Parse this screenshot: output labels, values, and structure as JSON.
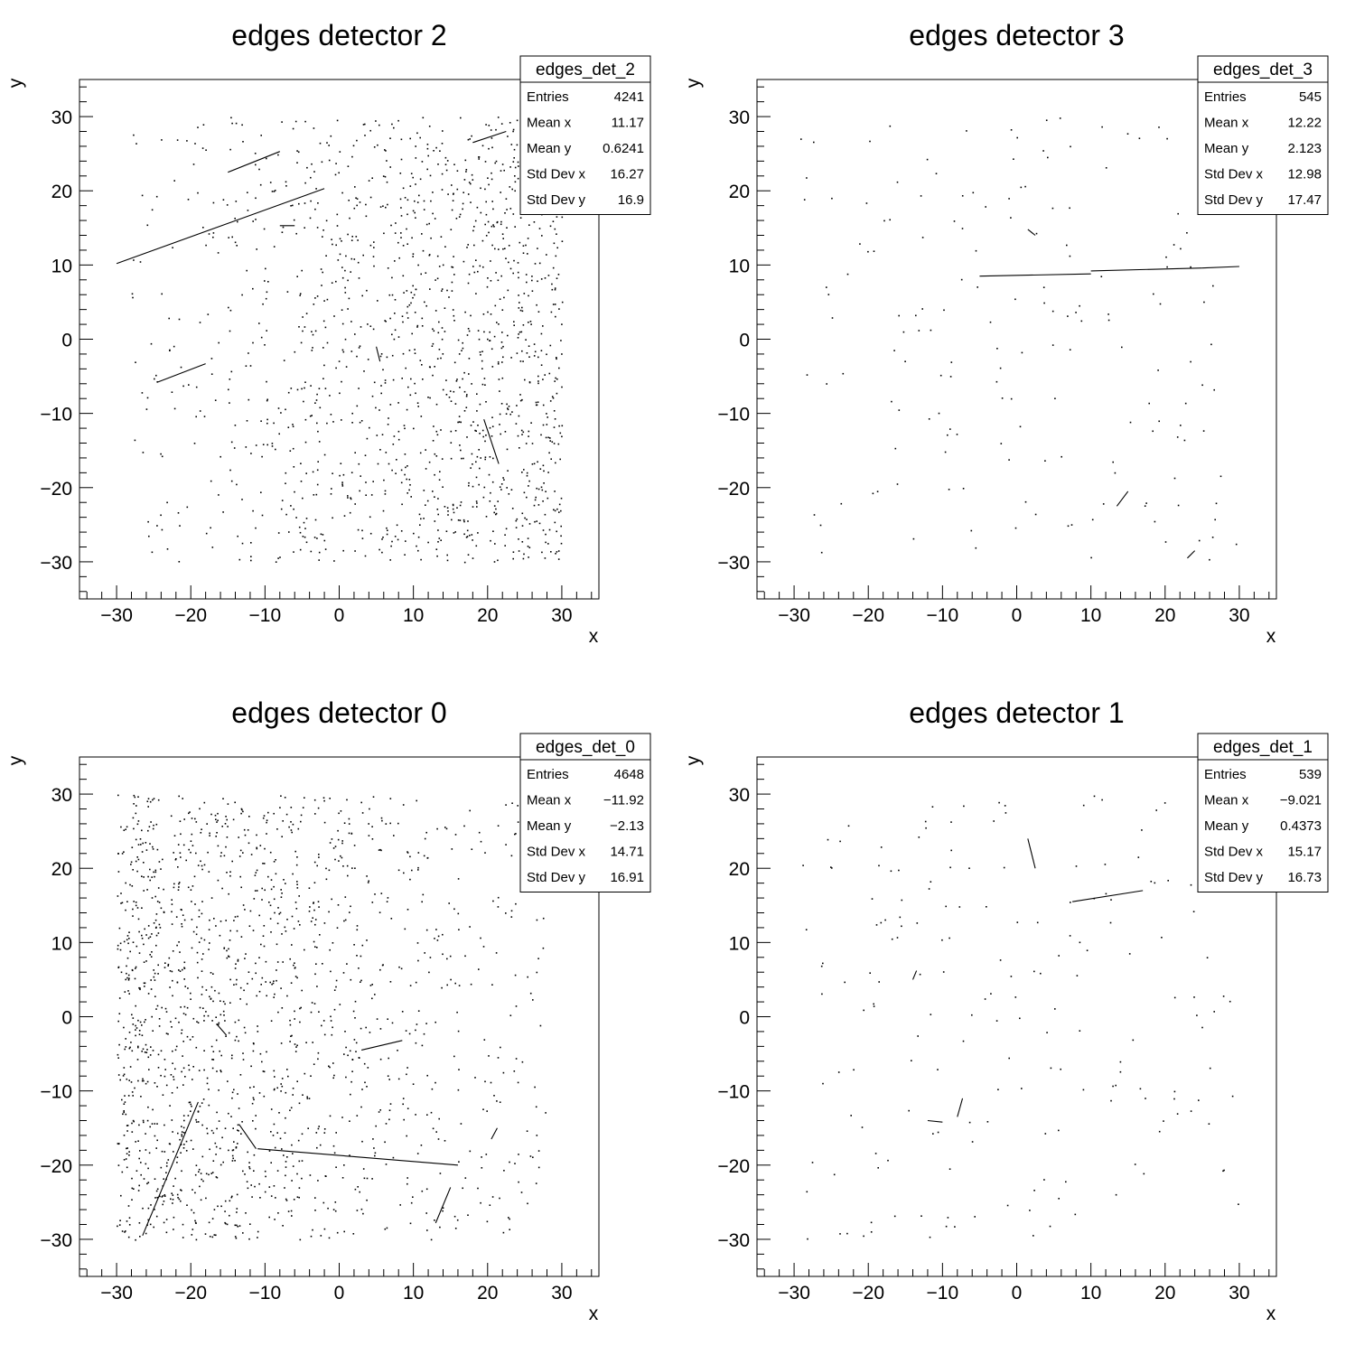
{
  "chart_data": [
    {
      "type": "scatter",
      "title": "edges detector 2",
      "xlabel": "x",
      "ylabel": "y",
      "xlim": [
        -35,
        35
      ],
      "ylim": [
        -35,
        35
      ],
      "xticks": [
        "−30",
        "−20",
        "−10",
        "0",
        "10",
        "20",
        "30"
      ],
      "yticks": [
        "−30",
        "−20",
        "−10",
        "0",
        "10",
        "20",
        "30"
      ],
      "grid": false,
      "stats": {
        "name": "edges_det_2",
        "rows": [
          {
            "label": "Entries",
            "value": "4241"
          },
          {
            "label": "Mean x",
            "value": "11.17"
          },
          {
            "label": "Mean y",
            "value": "0.6241"
          },
          {
            "label": "Std Dev x",
            "value": "16.27"
          },
          {
            "label": "Std Dev y",
            "value": "16.9"
          }
        ]
      },
      "segments": [
        {
          "x1": -30,
          "y1": 10.2,
          "x2": -2,
          "y2": 20.3
        },
        {
          "x1": -15,
          "y1": 22.5,
          "x2": -8,
          "y2": 25.3
        },
        {
          "x1": 18,
          "y1": 26.5,
          "x2": 22.5,
          "y2": 28
        },
        {
          "x1": -24.5,
          "y1": -5.8,
          "x2": -18,
          "y2": -3.3
        },
        {
          "x1": 19.5,
          "y1": -10.8,
          "x2": 21.5,
          "y2": -16.8
        },
        {
          "x1": -8,
          "y1": 15.3,
          "x2": -6,
          "y2": 15.3
        },
        {
          "x1": 5,
          "y1": -1,
          "x2": 5.5,
          "y2": -3
        }
      ],
      "scatter_region": {
        "xmin": -28,
        "xmax": 30,
        "ymin": -30,
        "ymax": 30,
        "bias": "right"
      }
    },
    {
      "type": "scatter",
      "title": "edges detector 3",
      "xlabel": "x",
      "ylabel": "y",
      "xlim": [
        -35,
        35
      ],
      "ylim": [
        -35,
        35
      ],
      "xticks": [
        "−30",
        "−20",
        "−10",
        "0",
        "10",
        "20",
        "30"
      ],
      "yticks": [
        "−30",
        "−20",
        "−10",
        "0",
        "10",
        "20",
        "30"
      ],
      "grid": false,
      "stats": {
        "name": "edges_det_3",
        "rows": [
          {
            "label": "Entries",
            "value": "545"
          },
          {
            "label": "Mean x",
            "value": "12.22"
          },
          {
            "label": "Mean y",
            "value": "2.123"
          },
          {
            "label": "Std Dev x",
            "value": "12.98"
          },
          {
            "label": "Std Dev y",
            "value": "17.47"
          }
        ]
      },
      "segments": [
        {
          "x1": -5,
          "y1": 8.5,
          "x2": 10,
          "y2": 8.8
        },
        {
          "x1": 10,
          "y1": 9.2,
          "x2": 25,
          "y2": 9.6
        },
        {
          "x1": 25,
          "y1": 9.6,
          "x2": 30,
          "y2": 9.8
        },
        {
          "x1": 13.5,
          "y1": -22.5,
          "x2": 15,
          "y2": -20.5
        },
        {
          "x1": 23,
          "y1": -29.5,
          "x2": 24,
          "y2": -28.5
        },
        {
          "x1": 1.5,
          "y1": 14.8,
          "x2": 2.5,
          "y2": 14
        }
      ],
      "scatter_region": {
        "xmin": -30,
        "xmax": 30,
        "ymin": -30,
        "ymax": 30,
        "bias": "none"
      }
    },
    {
      "type": "scatter",
      "title": "edges detector 0",
      "xlabel": "x",
      "ylabel": "y",
      "xlim": [
        -35,
        35
      ],
      "ylim": [
        -35,
        35
      ],
      "xticks": [
        "−30",
        "−20",
        "−10",
        "0",
        "10",
        "20",
        "30"
      ],
      "yticks": [
        "−30",
        "−20",
        "−10",
        "0",
        "10",
        "20",
        "30"
      ],
      "grid": false,
      "stats": {
        "name": "edges_det_0",
        "rows": [
          {
            "label": "Entries",
            "value": "4648"
          },
          {
            "label": "Mean x",
            "value": "−11.92"
          },
          {
            "label": "Mean y",
            "value": "−2.13"
          },
          {
            "label": "Std Dev x",
            "value": "14.71"
          },
          {
            "label": "Std Dev y",
            "value": "16.91"
          }
        ]
      },
      "segments": [
        {
          "x1": -11,
          "y1": -17.8,
          "x2": 16,
          "y2": -20
        },
        {
          "x1": -13.5,
          "y1": -14.5,
          "x2": -11.2,
          "y2": -17.8
        },
        {
          "x1": -26.5,
          "y1": -29.5,
          "x2": -19,
          "y2": -11.5
        },
        {
          "x1": 13,
          "y1": -27.8,
          "x2": 15,
          "y2": -23
        },
        {
          "x1": 3,
          "y1": -4.5,
          "x2": 8.5,
          "y2": -3.2
        },
        {
          "x1": -16.5,
          "y1": -1,
          "x2": -15.2,
          "y2": -2.5
        },
        {
          "x1": 20.5,
          "y1": -16.5,
          "x2": 21.3,
          "y2": -15
        }
      ],
      "scatter_region": {
        "xmin": -30,
        "xmax": 28,
        "ymin": -30,
        "ymax": 30,
        "bias": "left"
      }
    },
    {
      "type": "scatter",
      "title": "edges detector 1",
      "xlabel": "x",
      "ylabel": "y",
      "xlim": [
        -35,
        35
      ],
      "ylim": [
        -35,
        35
      ],
      "xticks": [
        "−30",
        "−20",
        "−10",
        "0",
        "10",
        "20",
        "30"
      ],
      "yticks": [
        "−30",
        "−20",
        "−10",
        "0",
        "10",
        "20",
        "30"
      ],
      "grid": false,
      "stats": {
        "name": "edges_det_1",
        "rows": [
          {
            "label": "Entries",
            "value": "539"
          },
          {
            "label": "Mean x",
            "value": "−9.021"
          },
          {
            "label": "Mean y",
            "value": "0.4373"
          },
          {
            "label": "Std Dev x",
            "value": "15.17"
          },
          {
            "label": "Std Dev y",
            "value": "16.73"
          }
        ]
      },
      "segments": [
        {
          "x1": 7.5,
          "y1": 15.5,
          "x2": 17,
          "y2": 17
        },
        {
          "x1": 1.5,
          "y1": 24,
          "x2": 2.5,
          "y2": 20
        },
        {
          "x1": -12,
          "y1": -14,
          "x2": -10,
          "y2": -14.2
        },
        {
          "x1": -8,
          "y1": -13.5,
          "x2": -7.3,
          "y2": -11
        },
        {
          "x1": -14,
          "y1": 5,
          "x2": -13.5,
          "y2": 6.2
        }
      ],
      "scatter_region": {
        "xmin": -30,
        "xmax": 30,
        "ymin": -30,
        "ymax": 30,
        "bias": "none"
      }
    }
  ]
}
